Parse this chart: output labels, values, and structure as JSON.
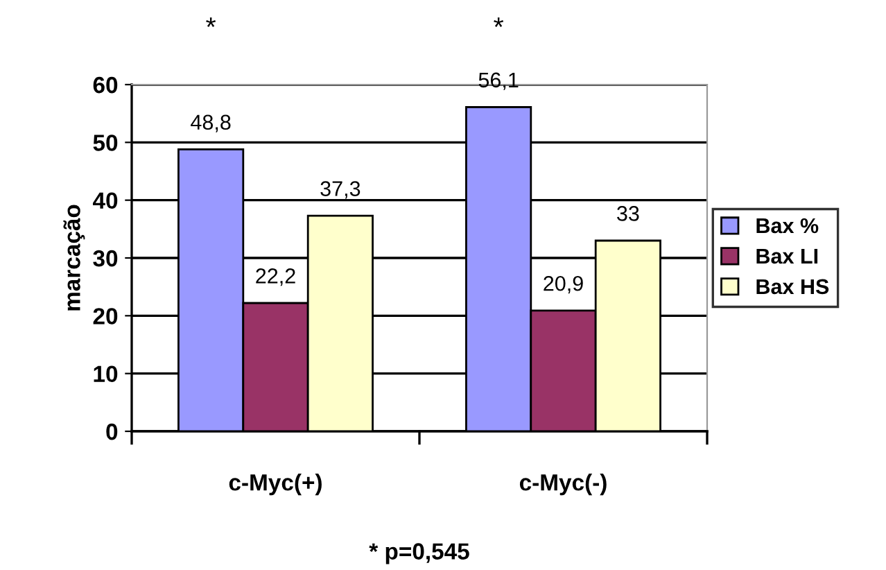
{
  "chart_data": {
    "type": "bar",
    "categories": [
      "c-Myc(+)",
      "c-Myc(-)"
    ],
    "series": [
      {
        "name": "Bax %",
        "color": "#9999ff",
        "values": [
          48.8,
          56.1
        ],
        "value_labels": [
          "48,8",
          "56,1"
        ]
      },
      {
        "name": "Bax LI",
        "color": "#993366",
        "values": [
          22.2,
          20.9
        ],
        "value_labels": [
          "22,2",
          "20,9"
        ]
      },
      {
        "name": "Bax HS",
        "color": "#ffffcc",
        "values": [
          37.3,
          33
        ],
        "value_labels": [
          "37,3",
          "33"
        ]
      }
    ],
    "ylabel": "marcação",
    "ylim": [
      0,
      60
    ],
    "yticks": [
      0,
      10,
      20,
      30,
      40,
      50,
      60
    ],
    "grid": "y",
    "legend": "right",
    "annotations": [
      "*",
      "*",
      "* p=0,545"
    ]
  }
}
